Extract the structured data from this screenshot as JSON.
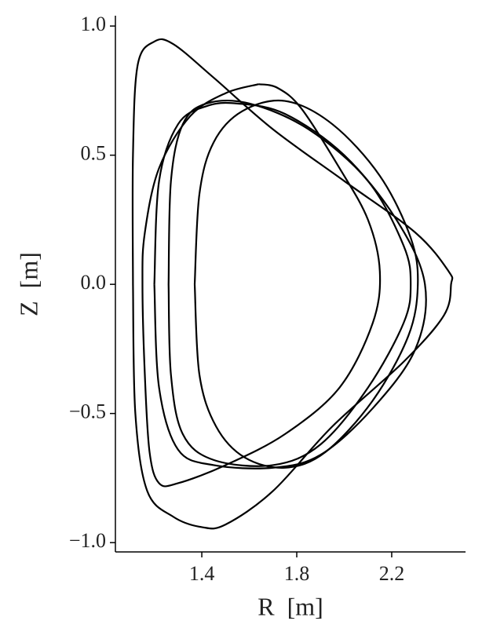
{
  "chart_data": {
    "type": "line",
    "xlabel": "R  [m]",
    "ylabel": "Z  [m]",
    "xlim": [
      1.036,
      2.511
    ],
    "ylim": [
      -1.036,
      1.04
    ],
    "xticks": [
      1.4,
      1.8,
      2.2
    ],
    "yticks": [
      {
        "value": 1.0,
        "label": "1.0"
      },
      0.5,
      {
        "value": 0.0,
        "label": "0.0"
      },
      {
        "value": -0.5,
        "label": "−0.5"
      },
      {
        "value": -1.0,
        "label": "−1.0"
      }
    ],
    "series": [
      {
        "color": "#000000",
        "x": [
          1.11,
          1.11,
          1.13,
          1.2,
          1.28,
          1.45,
          1.7,
          2.0,
          2.3,
          2.44,
          2.45,
          2.42,
          2.25,
          1.95,
          1.7,
          1.5,
          1.4,
          1.28,
          1.17,
          1.12,
          1.11
        ],
        "values": [
          0.0,
          0.5,
          0.85,
          0.94,
          0.93,
          0.8,
          0.6,
          0.4,
          0.2,
          0.05,
          0.0,
          -0.12,
          -0.3,
          -0.55,
          -0.8,
          -0.93,
          -0.94,
          -0.9,
          -0.8,
          -0.5,
          0.0
        ]
      },
      {
        "color": "#000000",
        "x": [
          1.64,
          1.5,
          1.35,
          1.22,
          1.16,
          1.15,
          1.16,
          1.18,
          1.22,
          1.3,
          1.5,
          1.75,
          1.98,
          2.12,
          2.15,
          2.1,
          1.98,
          1.82,
          1.72,
          1.64
        ],
        "values": [
          0.775,
          0.74,
          0.65,
          0.45,
          0.2,
          0.0,
          -0.35,
          -0.65,
          -0.77,
          -0.77,
          -0.7,
          -0.58,
          -0.4,
          -0.15,
          0.05,
          0.25,
          0.45,
          0.68,
          0.76,
          0.775
        ]
      },
      {
        "color": "#000000",
        "x": [
          1.26,
          1.27,
          1.32,
          1.42,
          1.6,
          1.85,
          2.1,
          2.25,
          2.28,
          2.25,
          2.1,
          1.9,
          1.7,
          1.45,
          1.32,
          1.27,
          1.26
        ],
        "values": [
          0.0,
          0.4,
          0.62,
          0.7,
          0.7,
          0.6,
          0.4,
          0.15,
          0.0,
          -0.15,
          -0.4,
          -0.62,
          -0.7,
          -0.68,
          -0.58,
          -0.35,
          0.0
        ]
      },
      {
        "color": "#000000",
        "x": [
          1.37,
          1.39,
          1.45,
          1.57,
          1.75,
          1.95,
          2.15,
          2.28,
          2.31,
          2.27,
          2.12,
          1.92,
          1.75,
          1.58,
          1.46,
          1.39,
          1.37
        ],
        "values": [
          0.0,
          0.35,
          0.55,
          0.67,
          0.71,
          0.62,
          0.42,
          0.18,
          0.0,
          -0.2,
          -0.45,
          -0.65,
          -0.71,
          -0.67,
          -0.55,
          -0.35,
          0.0
        ]
      },
      {
        "color": "#000000",
        "x": [
          1.2,
          1.22,
          1.3,
          1.42,
          1.55,
          1.75,
          2.0,
          2.22,
          2.34,
          2.3,
          2.12,
          1.9,
          1.7,
          1.45,
          1.3,
          1.22,
          1.2
        ],
        "values": [
          0.0,
          0.4,
          0.62,
          0.69,
          0.7,
          0.66,
          0.5,
          0.25,
          0.0,
          -0.25,
          -0.48,
          -0.66,
          -0.71,
          -0.7,
          -0.64,
          -0.4,
          0.0
        ]
      }
    ]
  }
}
